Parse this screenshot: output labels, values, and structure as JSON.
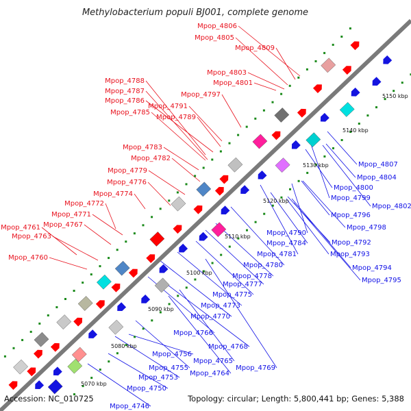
{
  "title": "Methylobacterium populi BJ001, complete genome",
  "accession": "Accession: NC_010725",
  "topology": "Topology: circular; Length: 5,800,441 bp; Genes: 5,388",
  "colors": {
    "backbone": "#7a7a7a",
    "forward_label": "#e8101c",
    "reverse_label": "#1010e6",
    "forward_gene": "#ff0000",
    "reverse_gene": "#1414e0",
    "tick_dot": "#1a8a1a"
  },
  "scale_labels": [
    "5070 kbp",
    "5080 kbp",
    "5090 kbp",
    "5100 kbp",
    "5110 kbp",
    "5120 kbp",
    "5130 kbp",
    "5140 kbp",
    "5150 kbp"
  ],
  "forward_labels": [
    "Mpop_4806",
    "Mpop_4805",
    "Mpop_4809",
    "Mpop_4803",
    "Mpop_4801",
    "Mpop_4788",
    "Mpop_4797",
    "Mpop_4787",
    "Mpop_4786",
    "Mpop_4791",
    "Mpop_4785",
    "Mpop_4789",
    "Mpop_4783",
    "Mpop_4782",
    "Mpop_4779",
    "Mpop_4776",
    "Mpop_4774",
    "Mpop_4772",
    "Mpop_4771",
    "Mpop_4767",
    "Mpop_4761",
    "Mpop_4763",
    "Mpop_4760"
  ],
  "reverse_labels": [
    "Mpop_4807",
    "Mpop_4804",
    "Mpop_4800",
    "Mpop_4799",
    "Mpop_4802",
    "Mpop_4796",
    "Mpop_4798",
    "Mpop_4790",
    "Mpop_4784",
    "Mpop_4792",
    "Mpop_4781",
    "Mpop_4793",
    "Mpop_4780",
    "Mpop_4794",
    "Mpop_4778",
    "Mpop_4795",
    "Mpop_4777",
    "Mpop_4775",
    "Mpop_4773",
    "Mpop_4770",
    "Mpop_4766",
    "Mpop_4768",
    "Mpop_4756",
    "Mpop_4765",
    "Mpop_4769",
    "Mpop_4755",
    "Mpop_4764",
    "Mpop_4753",
    "Mpop_4750",
    "Mpop_4746"
  ]
}
